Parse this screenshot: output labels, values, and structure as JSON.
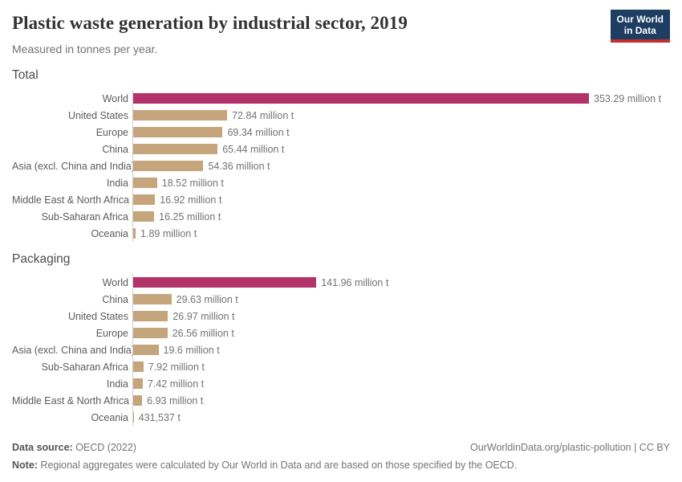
{
  "header": {
    "title": "Plastic waste generation by industrial sector, 2019",
    "subtitle": "Measured in tonnes per year.",
    "logo_line1": "Our World",
    "logo_line2": "in Data"
  },
  "colors": {
    "world_bar": "#b13369",
    "region_bar": "#c5a57b",
    "logo_bg": "#1d3d63",
    "logo_accent": "#c4302c",
    "axis_line": "#cccccc"
  },
  "chart_data": [
    {
      "type": "bar",
      "title": "Total",
      "unit": "tonnes per year",
      "orientation": "horizontal",
      "grid": false,
      "legend": "none",
      "xlim": [
        0,
        353.29
      ],
      "categories": [
        "World",
        "United States",
        "Europe",
        "China",
        "Asia (excl. China and India)",
        "India",
        "Middle East & North Africa",
        "Sub-Saharan Africa",
        "Oceania"
      ],
      "values": [
        353.29,
        72.84,
        69.34,
        65.44,
        54.36,
        18.52,
        16.92,
        16.25,
        1.89
      ],
      "value_labels": [
        "353.29 million t",
        "72.84 million t",
        "69.34 million t",
        "65.44 million t",
        "54.36 million t",
        "18.52 million t",
        "16.92 million t",
        "16.25 million t",
        "1.89 million t"
      ],
      "bar_colors": [
        "#b13369",
        "#c5a57b",
        "#c5a57b",
        "#c5a57b",
        "#c5a57b",
        "#c5a57b",
        "#c5a57b",
        "#c5a57b",
        "#c5a57b"
      ]
    },
    {
      "type": "bar",
      "title": "Packaging",
      "unit": "tonnes per year",
      "orientation": "horizontal",
      "grid": false,
      "legend": "none",
      "xlim": [
        0,
        353.29
      ],
      "categories": [
        "World",
        "China",
        "United States",
        "Europe",
        "Asia (excl. China and India)",
        "Sub-Saharan Africa",
        "India",
        "Middle East & North Africa",
        "Oceania"
      ],
      "values": [
        141.96,
        29.63,
        26.97,
        26.56,
        19.6,
        7.92,
        7.42,
        6.93,
        0.431537
      ],
      "value_labels": [
        "141.96 million t",
        "29.63 million t",
        "26.97 million t",
        "26.56 million t",
        "19.6 million t",
        "7.92 million t",
        "7.42 million t",
        "6.93 million t",
        "431,537 t"
      ],
      "bar_colors": [
        "#b13369",
        "#c5a57b",
        "#c5a57b",
        "#c5a57b",
        "#c5a57b",
        "#c5a57b",
        "#c5a57b",
        "#c5a57b",
        "#c5a57b"
      ]
    }
  ],
  "footer": {
    "datasource_label": "Data source:",
    "datasource_value": " OECD (2022)",
    "citation": "OurWorldinData.org/plastic-pollution | CC BY",
    "note_label": "Note:",
    "note_text": " Regional aggregates were calculated by Our World in Data and are based on those specified by the OECD."
  }
}
